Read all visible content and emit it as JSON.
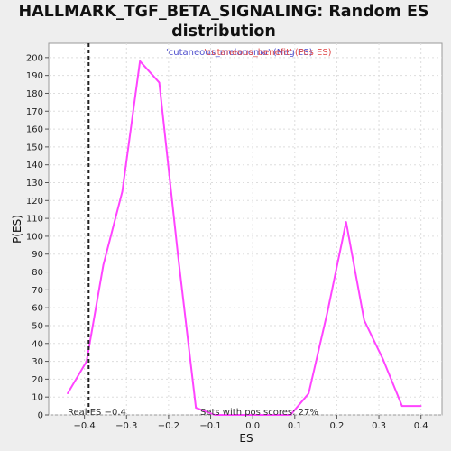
{
  "chart_data": {
    "type": "line",
    "title_lines": [
      "HALLMARK_TGF_BETA_SIGNALING: Random ES",
      "distribution"
    ],
    "xlabel": "ES",
    "ylabel": "P(ES)",
    "xlim": [
      -0.485,
      0.45
    ],
    "ylim": [
      0,
      208
    ],
    "x_ticks": [
      -0.4,
      -0.3,
      -0.2,
      -0.1,
      0.0,
      0.1,
      0.2,
      0.3,
      0.4
    ],
    "x_tick_labels": [
      "−0.4",
      "−0.3",
      "−0.2",
      "−0.1",
      "0.0",
      "0.1",
      "0.2",
      "0.3",
      "0.4"
    ],
    "y_ticks": [
      0,
      10,
      20,
      30,
      40,
      50,
      60,
      70,
      80,
      90,
      100,
      110,
      120,
      130,
      140,
      150,
      160,
      170,
      180,
      190,
      200
    ],
    "grid": true,
    "legend": {
      "placement": "top-center",
      "entries": [
        {
          "text": "'cutaneous_melanoma' (Neg ES)",
          "color": "#4d4dcc"
        },
        {
          "text": "'cutaneous_benefit' (Pos ES)",
          "color": "#e04a4a"
        }
      ]
    },
    "series": [
      {
        "color": "#ff44ff",
        "x": [
          -0.44,
          -0.395,
          -0.355,
          -0.31,
          -0.268,
          -0.222,
          -0.178,
          -0.135,
          -0.09,
          -0.045,
          0.0,
          0.045,
          0.09,
          0.133,
          0.178,
          0.222,
          0.265,
          0.31,
          0.355,
          0.4
        ],
        "y": [
          12,
          30,
          84,
          125,
          198,
          186,
          90,
          4,
          0,
          0,
          0,
          0,
          0,
          12,
          58,
          108,
          53,
          31,
          5,
          5
        ]
      }
    ],
    "reference_line": {
      "x": -0.39,
      "style": "dashed",
      "color": "#222222"
    },
    "annotations": {
      "real_es": "Real ES −0.4",
      "pos_scores": "Sets with pos scores: 27%"
    }
  }
}
